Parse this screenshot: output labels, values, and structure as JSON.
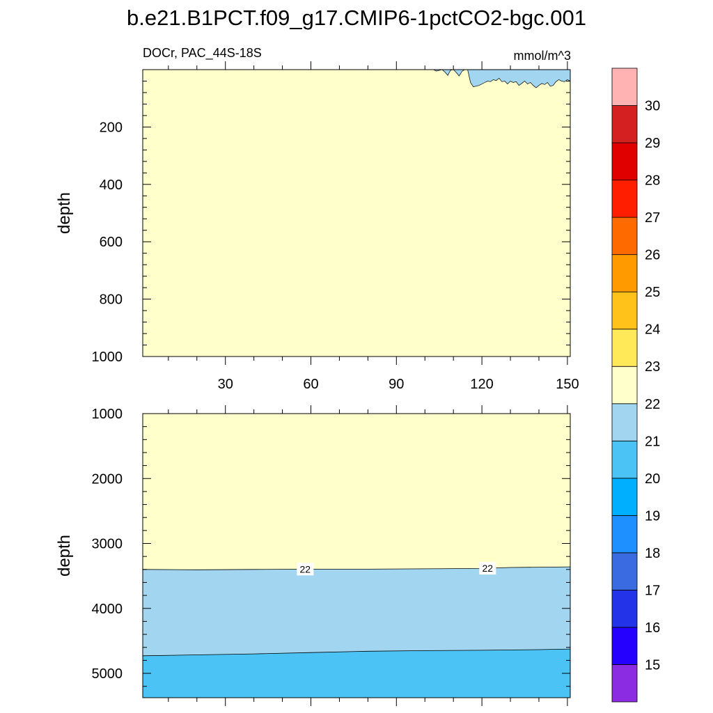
{
  "chart_data": {
    "type": "heatmap",
    "title": "b.e21.B1PCT.f09_g17.CMIP6-1pctCO2-bgc.001",
    "variable_label": "DOCr, PAC_44S-18S",
    "units": "mmol/m^3",
    "x_axis": {
      "label": "",
      "ticks": [
        "30",
        "60",
        "90",
        "120",
        "150"
      ],
      "tick_values": [
        30,
        60,
        90,
        120,
        150
      ],
      "range": [
        1,
        151
      ]
    },
    "panels": [
      {
        "name": "upper",
        "ylabel": "depth",
        "ylim": [
          0,
          1000
        ],
        "y_ticks": [
          "200",
          "400",
          "600",
          "800",
          "1000"
        ],
        "y_tick_values": [
          200,
          400,
          600,
          800,
          1000
        ],
        "background_level": "22-23",
        "region_21_22_surface_depth_by_x": [
          [
            101,
            0
          ],
          [
            103,
            0
          ],
          [
            104,
            5
          ],
          [
            106,
            0
          ],
          [
            107,
            8
          ],
          [
            108,
            20
          ],
          [
            109,
            2
          ],
          [
            110,
            0
          ],
          [
            111,
            10
          ],
          [
            112,
            22
          ],
          [
            113,
            6
          ],
          [
            114,
            0
          ],
          [
            115,
            0
          ],
          [
            116,
            45
          ],
          [
            117,
            60
          ],
          [
            119,
            55
          ],
          [
            121,
            45
          ],
          [
            122,
            40
          ],
          [
            123,
            42
          ],
          [
            124,
            35
          ],
          [
            125,
            38
          ],
          [
            126,
            30
          ],
          [
            127,
            42
          ],
          [
            128,
            40
          ],
          [
            129,
            50
          ],
          [
            130,
            40
          ],
          [
            131,
            45
          ],
          [
            132,
            42
          ],
          [
            133,
            55
          ],
          [
            134,
            48
          ],
          [
            135,
            40
          ],
          [
            136,
            50
          ],
          [
            137,
            45
          ],
          [
            138,
            55
          ],
          [
            139,
            63
          ],
          [
            140,
            55
          ],
          [
            141,
            48
          ],
          [
            142,
            52
          ],
          [
            143,
            45
          ],
          [
            144,
            58
          ],
          [
            145,
            55
          ],
          [
            146,
            42
          ],
          [
            147,
            35
          ],
          [
            148,
            40
          ],
          [
            149,
            42
          ],
          [
            150,
            35
          ],
          [
            151,
            40
          ]
        ]
      },
      {
        "name": "lower",
        "ylabel": "depth",
        "ylim": [
          1000,
          5375
        ],
        "y_ticks": [
          "1000",
          "2000",
          "3000",
          "4000",
          "5000"
        ],
        "y_tick_values": [
          1000,
          2000,
          3000,
          4000,
          5000
        ],
        "contours": [
          {
            "level": 22,
            "label": "22",
            "x": [
              1,
              20,
              40,
              60,
              80,
              100,
              120,
              130,
              140,
              151
            ],
            "depth": [
              3400,
              3405,
              3400,
              3395,
              3395,
              3390,
              3385,
              3370,
              3365,
              3360
            ]
          },
          {
            "level": 21,
            "x": [
              1,
              20,
              40,
              60,
              80,
              100,
              120,
              140,
              151
            ],
            "depth": [
              4730,
              4715,
              4700,
              4680,
              4660,
              4650,
              4645,
              4635,
              4625
            ]
          }
        ],
        "contour_labels": [
          {
            "text": "22",
            "x": 58
          },
          {
            "text": "22",
            "x": 122
          }
        ]
      }
    ],
    "colorbar": {
      "labels": [
        "15",
        "16",
        "17",
        "18",
        "19",
        "20",
        "21",
        "22",
        "23",
        "24",
        "25",
        "26",
        "27",
        "28",
        "29",
        "30"
      ],
      "colors": [
        "#8b2be2",
        "#2600ff",
        "#2233e8",
        "#3a6be0",
        "#1e90ff",
        "#00b0ff",
        "#4cc3f5",
        "#a2d6f0",
        "#ffffcc",
        "#ffe958",
        "#ffc21a",
        "#ff9a00",
        "#ff6a00",
        "#ff1e00",
        "#e00000",
        "#d42020",
        "#ffb3b3"
      ]
    },
    "grid": false
  }
}
